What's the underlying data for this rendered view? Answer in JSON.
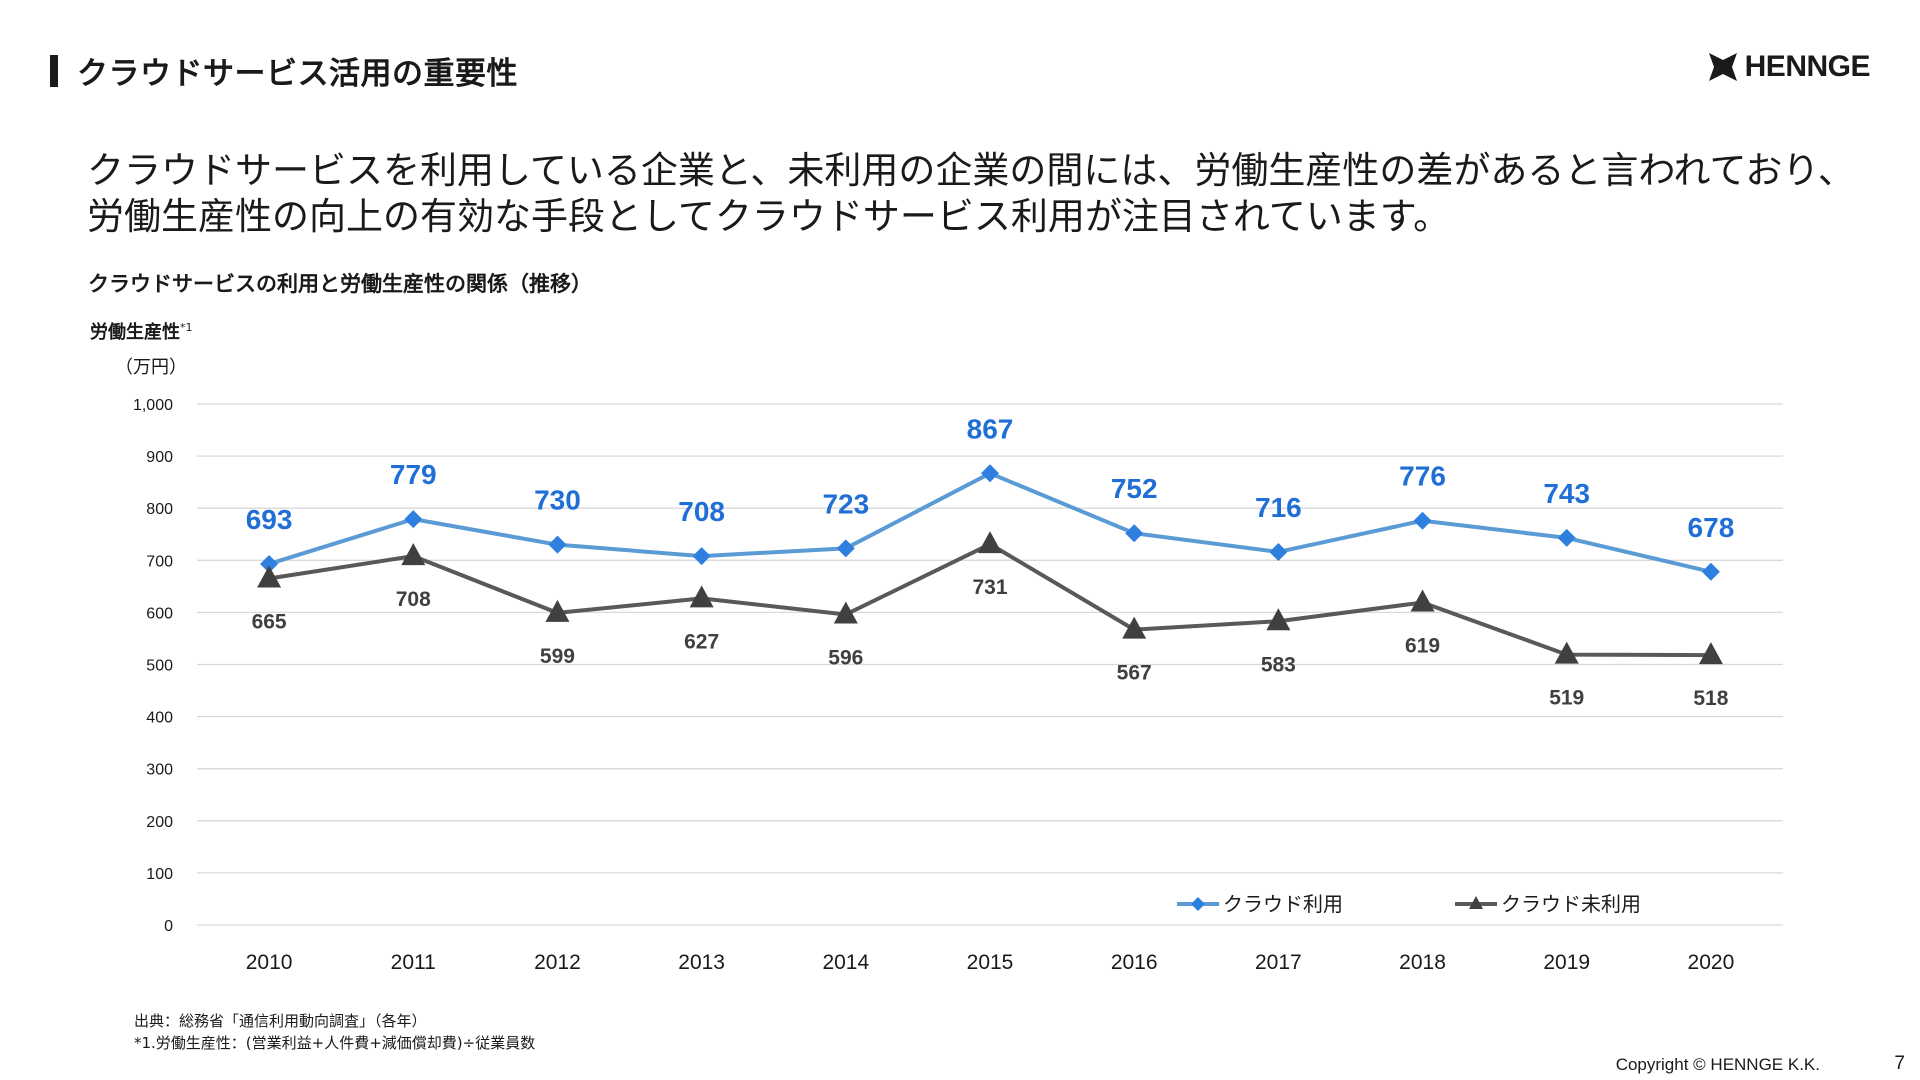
{
  "slide": {
    "title": "クラウドサービス活用の重要性",
    "logo_text": "HENNGE",
    "lead_line1": "クラウドサービスを利用している企業と、未利用の企業の間には、労働生産性の差があると言われており、",
    "lead_line2": "労働生産性の向上の有効な手段としてクラウドサービス利用が注目されています。",
    "chart_heading": "クラウドサービスの利用と労働生産性の関係（推移）",
    "y_title": "労働生産性",
    "y_title_note": "*1",
    "y_unit": "（万円）",
    "source_line1": "出典：総務省「通信利用動向調査」（各年）",
    "source_line2": "*1.労働生産性：(営業利益+人件費+減価償却費)÷従業員数",
    "copyright": "Copyright © HENNGE K.K.",
    "page_number": "7"
  },
  "chart_data": {
    "type": "line",
    "categories": [
      "2010",
      "2011",
      "2012",
      "2013",
      "2014",
      "2015",
      "2016",
      "2017",
      "2018",
      "2019",
      "2020"
    ],
    "y_tick_labels": [
      "0",
      "100",
      "200",
      "300",
      "400",
      "500",
      "600",
      "700",
      "800",
      "900",
      "1,000"
    ],
    "ylim": [
      0,
      1000
    ],
    "grid": true,
    "legend_position": "bottom-right",
    "series": [
      {
        "name": "クラウド利用",
        "values": [
          693,
          779,
          730,
          708,
          723,
          867,
          752,
          716,
          776,
          743,
          678
        ],
        "color": "#5b9bd5",
        "marker": "diamond",
        "marker_color": "#2f7fe0",
        "label_color": "#1f6fd6",
        "labels_position": "above"
      },
      {
        "name": "クラウド未利用",
        "values": [
          665,
          708,
          599,
          627,
          596,
          731,
          567,
          583,
          619,
          519,
          518
        ],
        "color": "#595959",
        "marker": "triangle",
        "marker_color": "#404040",
        "label_color": "#404040",
        "labels_position": "below"
      }
    ]
  }
}
